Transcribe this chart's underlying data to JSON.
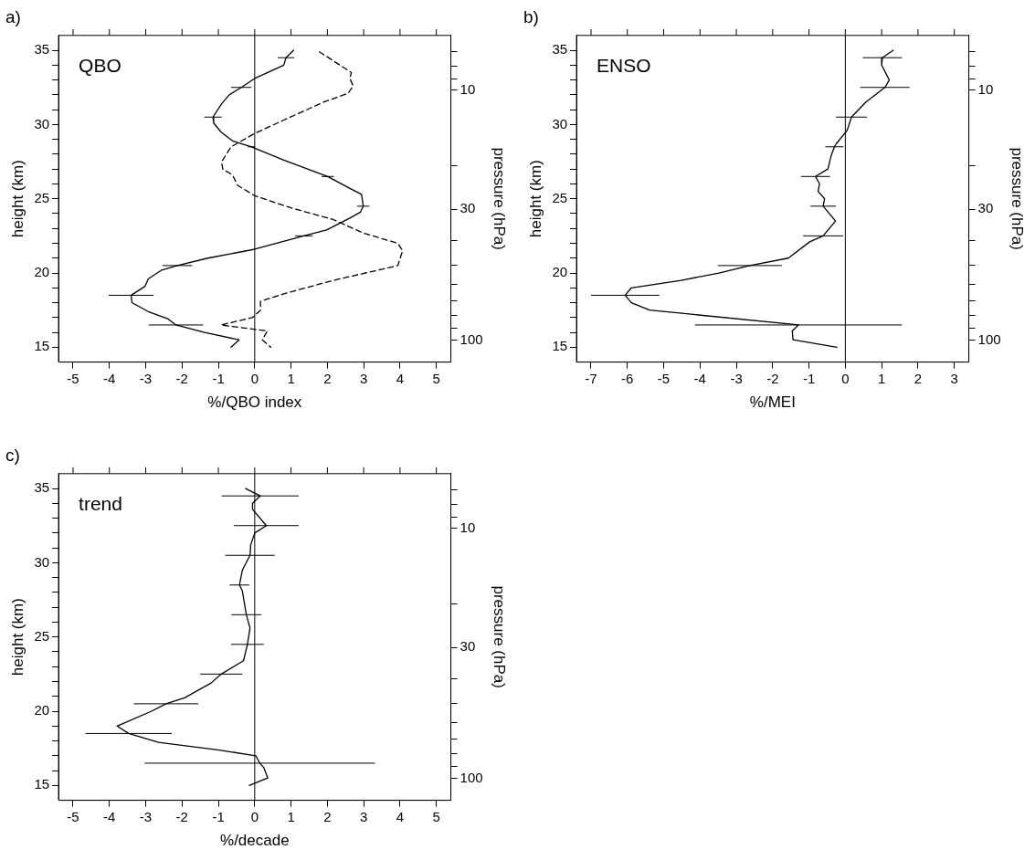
{
  "chart_data": [
    {
      "type": "line",
      "title": "a)",
      "annotations": [
        "QBO"
      ],
      "xlabel": "%/QBO index",
      "ylabel": "height (km)",
      "y2label": "pressure (hPa)",
      "xlim": [
        -5.4,
        5.4
      ],
      "xticks": [
        -5,
        -4,
        -3,
        -2,
        -1,
        0,
        1,
        2,
        3,
        4,
        5
      ],
      "ylim": [
        14,
        36
      ],
      "yticks": [
        15,
        {
          "value": 16,
          "label": null
        },
        {
          "value": 17,
          "label": null
        },
        {
          "value": 18,
          "label": null
        },
        {
          "value": 19,
          "label": null
        },
        20,
        {
          "value": 21,
          "label": null
        },
        {
          "value": 22,
          "label": null
        },
        {
          "value": 23,
          "label": null
        },
        {
          "value": 24,
          "label": null
        },
        25,
        {
          "value": 26,
          "label": null
        },
        {
          "value": 27,
          "label": null
        },
        {
          "value": 28,
          "label": null
        },
        {
          "value": 29,
          "label": null
        },
        30,
        {
          "value": 31,
          "label": null
        },
        {
          "value": 32,
          "label": null
        },
        {
          "value": 33,
          "label": null
        },
        {
          "value": 34,
          "label": null
        },
        35
      ],
      "y2lim": [
        122.6,
        6.04
      ],
      "y2ticks": [
        {
          "value": 7,
          "label": null
        },
        {
          "value": 8,
          "label": null
        },
        {
          "value": 9,
          "label": null
        },
        10,
        {
          "value": 20,
          "label": null
        },
        30,
        {
          "value": 40,
          "label": null
        },
        {
          "value": 50,
          "label": null
        },
        {
          "value": 60,
          "label": null
        },
        {
          "value": 70,
          "label": null
        },
        {
          "value": 80,
          "label": null
        },
        {
          "value": 90,
          "label": null
        },
        100
      ],
      "log": "y2",
      "grid": false,
      "legend": false,
      "marker": "none",
      "ref_lines": [
        {
          "axis": "x",
          "value": 0
        }
      ],
      "series": [
        {
          "color": "#000000",
          "line_style": "solid",
          "x": [
            1.07,
            0.86,
            0.8,
            0,
            -0.37,
            -0.7,
            -0.91,
            -1.15,
            -1.13,
            -0.93,
            -0.61,
            -0.09,
            0.8,
            2.01,
            2.62,
            2.94,
            2.99,
            2.91,
            2.62,
            1.98,
            1.35,
            0,
            -1.29,
            -2.13,
            -2.56,
            -2.93,
            -3.02,
            -3.4,
            -3.38,
            -2.93,
            -2.38,
            -2.17,
            -1.38,
            -0.43,
            -0.65
          ],
          "values": [
            35,
            34.5,
            34,
            33.1,
            32.5,
            32,
            31.4,
            30.5,
            30.1,
            29.5,
            28.9,
            28.5,
            27.6,
            26.5,
            25.7,
            25.3,
            24.5,
            24.1,
            23.7,
            22.9,
            22.5,
            21.6,
            21,
            20.5,
            20.2,
            19.6,
            19.1,
            18.5,
            18,
            17.4,
            16.9,
            16.5,
            16,
            15.5,
            15
          ],
          "xerrors": [
            null,
            0.23,
            null,
            null,
            0.28,
            null,
            null,
            0.24,
            null,
            null,
            null,
            0.1,
            null,
            0.17,
            null,
            null,
            0.17,
            null,
            null,
            null,
            0.24,
            null,
            null,
            0.41,
            null,
            null,
            null,
            0.62,
            null,
            null,
            null,
            0.75,
            null,
            null,
            null
          ]
        },
        {
          "color": "#000000",
          "line_style": "dashed",
          "x": [
            1.78,
            2.66,
            2.62,
            2.71,
            2.57,
            1.89,
            0.8,
            0,
            -0.65,
            -0.91,
            -0.88,
            -0.61,
            -0.47,
            0,
            0.98,
            2.16,
            2.98,
            3.94,
            4.07,
            3.94,
            2.16,
            0.8,
            0.16,
            0.16,
            -0.06,
            -0.93,
            0.35,
            0.21,
            0.44
          ],
          "values": [
            34.9,
            33.5,
            33.1,
            32.6,
            32.1,
            31.5,
            30.3,
            29.4,
            28.5,
            27.5,
            27,
            26.6,
            25.9,
            25.2,
            24.4,
            23.6,
            22.7,
            22,
            21.5,
            20.5,
            19.5,
            18.6,
            18.1,
            17.5,
            17,
            16.5,
            16.1,
            15.5,
            15
          ]
        }
      ]
    },
    {
      "type": "line",
      "title": "b)",
      "annotations": [
        "ENSO"
      ],
      "xlabel": "%/MEI",
      "ylabel": "height (km)",
      "y2label": "pressure (hPa)",
      "xlim": [
        -7.4,
        3.4
      ],
      "xticks": [
        -7,
        -6,
        -5,
        -4,
        -3,
        -2,
        -1,
        0,
        1,
        2,
        3
      ],
      "ylim": [
        14,
        36
      ],
      "yticks": [
        15,
        {
          "value": 16,
          "label": null
        },
        {
          "value": 17,
          "label": null
        },
        {
          "value": 18,
          "label": null
        },
        {
          "value": 19,
          "label": null
        },
        20,
        {
          "value": 21,
          "label": null
        },
        {
          "value": 22,
          "label": null
        },
        {
          "value": 23,
          "label": null
        },
        {
          "value": 24,
          "label": null
        },
        25,
        {
          "value": 26,
          "label": null
        },
        {
          "value": 27,
          "label": null
        },
        {
          "value": 28,
          "label": null
        },
        {
          "value": 29,
          "label": null
        },
        30,
        {
          "value": 31,
          "label": null
        },
        {
          "value": 32,
          "label": null
        },
        {
          "value": 33,
          "label": null
        },
        {
          "value": 34,
          "label": null
        },
        35
      ],
      "y2lim": [
        122.6,
        6.04
      ],
      "y2ticks": [
        {
          "value": 7,
          "label": null
        },
        {
          "value": 8,
          "label": null
        },
        {
          "value": 9,
          "label": null
        },
        10,
        {
          "value": 20,
          "label": null
        },
        30,
        {
          "value": 40,
          "label": null
        },
        {
          "value": 50,
          "label": null
        },
        {
          "value": 60,
          "label": null
        },
        {
          "value": 70,
          "label": null
        },
        {
          "value": 80,
          "label": null
        },
        {
          "value": 90,
          "label": null
        },
        100
      ],
      "log": "y2",
      "grid": false,
      "legend": false,
      "marker": "none",
      "ref_lines": [
        {
          "axis": "x",
          "value": 0
        }
      ],
      "series": [
        {
          "color": "#000000",
          "line_style": "solid",
          "x": [
            1.32,
            1.02,
            1.0,
            1.21,
            1.09,
            0.56,
            0.17,
            0.05,
            -0.25,
            -0.3,
            -0.39,
            -0.48,
            -0.82,
            -0.71,
            -0.75,
            -0.57,
            -0.61,
            -0.27,
            -0.61,
            -0.98,
            -1.57,
            -2.63,
            -3.48,
            -4.52,
            -5.89,
            -6.06,
            -5.89,
            -5.39,
            -1.29,
            -1.46,
            -1.44,
            -0.23
          ],
          "values": [
            35,
            34.5,
            34,
            33,
            32.5,
            31.5,
            30.5,
            29.6,
            28.7,
            28.5,
            27.9,
            27,
            26.5,
            26,
            25.5,
            25,
            24.5,
            23.5,
            22.5,
            22.1,
            21,
            20.5,
            20,
            19.5,
            19,
            18.5,
            18,
            17.5,
            16.5,
            16.1,
            15.5,
            15
          ],
          "xerrors": [
            null,
            0.54,
            null,
            null,
            0.68,
            null,
            0.43,
            null,
            null,
            0.25,
            null,
            null,
            0.4,
            null,
            null,
            null,
            0.35,
            null,
            0.55,
            null,
            null,
            0.88,
            null,
            null,
            null,
            0.94,
            null,
            null,
            2.85,
            null,
            null,
            null
          ]
        }
      ]
    },
    {
      "type": "line",
      "title": "c)",
      "annotations": [
        "trend"
      ],
      "xlabel": "%/decade",
      "ylabel": "height (km)",
      "y2label": "pressure (hPa)",
      "xlim": [
        -5.4,
        5.4
      ],
      "xticks": [
        -5,
        -4,
        -3,
        -2,
        -1,
        0,
        1,
        2,
        3,
        4,
        5
      ],
      "ylim": [
        14,
        36
      ],
      "yticks": [
        15,
        {
          "value": 16,
          "label": null
        },
        {
          "value": 17,
          "label": null
        },
        {
          "value": 18,
          "label": null
        },
        {
          "value": 19,
          "label": null
        },
        20,
        {
          "value": 21,
          "label": null
        },
        {
          "value": 22,
          "label": null
        },
        {
          "value": 23,
          "label": null
        },
        {
          "value": 24,
          "label": null
        },
        25,
        {
          "value": 26,
          "label": null
        },
        {
          "value": 27,
          "label": null
        },
        {
          "value": 28,
          "label": null
        },
        {
          "value": 29,
          "label": null
        },
        30,
        {
          "value": 31,
          "label": null
        },
        {
          "value": 32,
          "label": null
        },
        {
          "value": 33,
          "label": null
        },
        {
          "value": 34,
          "label": null
        },
        35
      ],
      "y2lim": [
        122.6,
        6.04
      ],
      "y2ticks": [
        {
          "value": 7,
          "label": null
        },
        {
          "value": 8,
          "label": null
        },
        {
          "value": 9,
          "label": null
        },
        10,
        {
          "value": 20,
          "label": null
        },
        30,
        {
          "value": 40,
          "label": null
        },
        {
          "value": 50,
          "label": null
        },
        {
          "value": 60,
          "label": null
        },
        {
          "value": 70,
          "label": null
        },
        {
          "value": 80,
          "label": null
        },
        {
          "value": 90,
          "label": null
        },
        100
      ],
      "log": "y2",
      "grid": false,
      "legend": false,
      "marker": "none",
      "ref_lines": [
        {
          "axis": "x",
          "value": 0
        }
      ],
      "series": [
        {
          "color": "#000000",
          "line_style": "solid",
          "x": [
            -0.25,
            0.15,
            -0.06,
            -0.06,
            0.32,
            0,
            -0.11,
            -0.13,
            -0.34,
            -0.38,
            -0.42,
            -0.34,
            -0.23,
            -0.13,
            -0.2,
            -0.31,
            -0.92,
            -1.2,
            -1.93,
            -2.44,
            -2.84,
            -3.79,
            -3.47,
            -2.65,
            -1.02,
            0.03,
            0.14,
            0.25,
            0.36,
            -0.15
          ],
          "values": [
            35,
            34.5,
            34,
            33.6,
            32.5,
            32,
            31.2,
            30.5,
            29.5,
            29,
            28.5,
            28.1,
            26.5,
            25.6,
            24.5,
            23.4,
            22.5,
            21.9,
            20.9,
            20.5,
            20,
            19,
            18.5,
            17.9,
            17.4,
            17,
            16.5,
            16.2,
            15.5,
            15
          ],
          "xerrors": [
            null,
            1.06,
            null,
            null,
            0.89,
            null,
            null,
            0.68,
            null,
            null,
            0.27,
            null,
            0.41,
            null,
            0.45,
            null,
            0.58,
            null,
            null,
            0.89,
            null,
            null,
            1.19,
            null,
            null,
            null,
            3.17,
            null,
            null,
            null
          ]
        }
      ]
    }
  ]
}
